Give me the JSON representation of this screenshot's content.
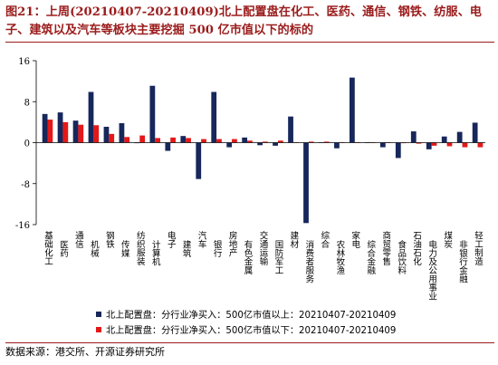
{
  "title": "图21：上周(20210407-20210409)北上配置盘在化工、医药、通信、钢铁、纺服、电子、建筑以及汽车等板块主要挖掘 500 亿市值以下的标的",
  "source": "数据来源：港交所、开源证券研究所",
  "colors": {
    "accent": "#9b1c1c",
    "series_above": "#17275b",
    "series_below": "#e41818"
  },
  "chart_data": {
    "type": "bar",
    "ylim": [
      -16,
      16
    ],
    "yticks": [
      -16,
      -8,
      0,
      8,
      16
    ],
    "grid": false,
    "legend_position": "bottom-left",
    "categories": [
      "基础化工",
      "医药",
      "通信",
      "机械",
      "钢铁",
      "传媒",
      "纺织服装",
      "计算机",
      "电子",
      "建筑",
      "汽车",
      "银行",
      "房地产",
      "有色金属",
      "交通运输",
      "国防军工",
      "建材",
      "消费者服务",
      "综合",
      "农林牧渔",
      "家电",
      "综合金融",
      "商贸零售",
      "食品饮料",
      "石油石化",
      "电力及公用事业",
      "煤炭",
      "非银行金融",
      "轻工制造"
    ],
    "series": [
      {
        "name": "北上配置盘：分行业净买入：500亿市值以上：20210407-20210409",
        "values": [
          5.6,
          5.9,
          4.3,
          9.9,
          3.1,
          3.8,
          -0.1,
          11.1,
          -1.6,
          1.3,
          -7.1,
          9.9,
          -0.9,
          1.0,
          -0.5,
          -0.6,
          5.1,
          -15.7,
          0.1,
          -1.1,
          12.7,
          0.05,
          -0.9,
          -3.0,
          2.2,
          -1.3,
          1.2,
          2.1,
          3.9
        ]
      },
      {
        "name": "北上配置盘：分行业净买入：500亿市值以下：20210407-20210409",
        "values": [
          4.5,
          4.0,
          3.5,
          3.4,
          1.7,
          1.1,
          1.4,
          0.9,
          1.0,
          0.9,
          0.7,
          0.7,
          0.7,
          0.4,
          0.2,
          0.4,
          0.1,
          0.2,
          0.2,
          0.1,
          0.1,
          0.1,
          0.1,
          -0.1,
          -0.2,
          -0.6,
          -0.7,
          -0.9,
          -0.9
        ]
      }
    ]
  }
}
